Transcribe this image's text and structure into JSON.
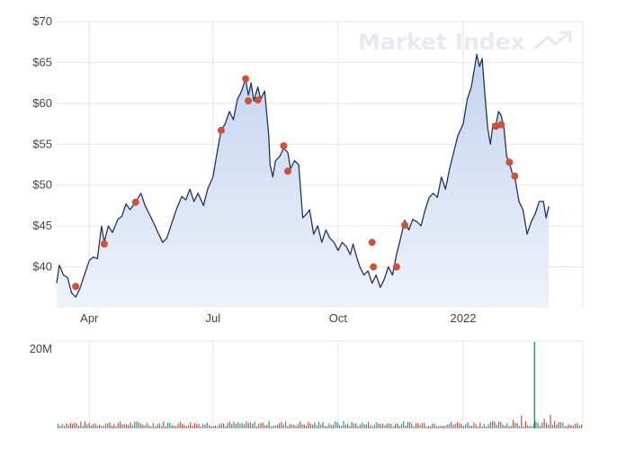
{
  "watermark": {
    "text": "Market Index"
  },
  "colors": {
    "line": "#22335f",
    "fill_top": "#c4d4ee",
    "fill_bottom": "#eef2fa",
    "marker": "#d0513a",
    "grid": "#e5e5e5",
    "vol_up": "#3a8f7f",
    "vol_down": "#c0503c"
  },
  "chart_data": [
    {
      "type": "area",
      "title": "",
      "xlabel": "",
      "ylabel": "",
      "ylim": [
        35,
        70
      ],
      "y_ticks": [
        "$40",
        "$45",
        "$50",
        "$55",
        "$60",
        "$65",
        "$70"
      ],
      "y_tick_values": [
        40,
        45,
        50,
        55,
        60,
        65,
        70
      ],
      "x_ticks": [
        "Apr",
        "Jul",
        "Oct",
        "2022"
      ],
      "x_tick_dates": [
        "2021-04-01",
        "2021-07-01",
        "2021-10-01",
        "2022-01-01"
      ],
      "xlim": [
        "2021-03-08",
        "2022-03-30"
      ],
      "grid": true,
      "series": [
        {
          "values": [
            [
              "2021-03-08",
              38.0
            ],
            [
              "2021-03-10",
              40.2
            ],
            [
              "2021-03-13",
              39.0
            ],
            [
              "2021-03-16",
              38.7
            ],
            [
              "2021-03-19",
              36.8
            ],
            [
              "2021-03-22",
              36.3
            ],
            [
              "2021-03-25",
              37.3
            ],
            [
              "2021-03-28",
              38.8
            ],
            [
              "2021-04-01",
              40.8
            ],
            [
              "2021-04-04",
              41.2
            ],
            [
              "2021-04-07",
              41.0
            ],
            [
              "2021-04-10",
              45.0
            ],
            [
              "2021-04-12",
              43.0
            ],
            [
              "2021-04-15",
              45.0
            ],
            [
              "2021-04-18",
              44.2
            ],
            [
              "2021-04-22",
              45.8
            ],
            [
              "2021-04-25",
              46.2
            ],
            [
              "2021-04-28",
              47.7
            ],
            [
              "2021-05-01",
              47.0
            ],
            [
              "2021-05-05",
              47.9
            ],
            [
              "2021-05-09",
              49.0
            ],
            [
              "2021-05-12",
              47.5
            ],
            [
              "2021-05-15",
              46.5
            ],
            [
              "2021-05-18",
              45.5
            ],
            [
              "2021-05-22",
              44.0
            ],
            [
              "2021-05-25",
              43.0
            ],
            [
              "2021-05-28",
              43.5
            ],
            [
              "2021-06-01",
              45.5
            ],
            [
              "2021-06-04",
              47.0
            ],
            [
              "2021-06-08",
              48.6
            ],
            [
              "2021-06-11",
              48.2
            ],
            [
              "2021-06-14",
              49.5
            ],
            [
              "2021-06-17",
              48.0
            ],
            [
              "2021-06-20",
              49.0
            ],
            [
              "2021-06-24",
              47.5
            ],
            [
              "2021-06-27",
              49.5
            ],
            [
              "2021-07-01",
              51.0
            ],
            [
              "2021-07-04",
              54.0
            ],
            [
              "2021-07-07",
              56.7
            ],
            [
              "2021-07-10",
              57.5
            ],
            [
              "2021-07-13",
              59.0
            ],
            [
              "2021-07-16",
              58.0
            ],
            [
              "2021-07-19",
              60.5
            ],
            [
              "2021-07-22",
              61.5
            ],
            [
              "2021-07-25",
              63.0
            ],
            [
              "2021-07-27",
              61.0
            ],
            [
              "2021-07-29",
              62.5
            ],
            [
              "2021-07-31",
              60.3
            ],
            [
              "2021-08-03",
              62.0
            ],
            [
              "2021-08-05",
              60.5
            ],
            [
              "2021-08-08",
              61.5
            ],
            [
              "2021-08-11",
              56.0
            ],
            [
              "2021-08-12",
              52.5
            ],
            [
              "2021-08-14",
              51.0
            ],
            [
              "2021-08-16",
              53.0
            ],
            [
              "2021-08-19",
              53.5
            ],
            [
              "2021-08-22",
              54.5
            ],
            [
              "2021-08-25",
              54.0
            ],
            [
              "2021-08-27",
              52.0
            ],
            [
              "2021-08-30",
              53.0
            ],
            [
              "2021-09-02",
              52.5
            ],
            [
              "2021-09-05",
              46.0
            ],
            [
              "2021-09-08",
              46.5
            ],
            [
              "2021-09-10",
              47.0
            ],
            [
              "2021-09-13",
              44.0
            ],
            [
              "2021-09-16",
              45.0
            ],
            [
              "2021-09-19",
              43.0
            ],
            [
              "2021-09-22",
              44.5
            ],
            [
              "2021-09-25",
              43.5
            ],
            [
              "2021-09-28",
              43.0
            ],
            [
              "2021-10-01",
              42.0
            ],
            [
              "2021-10-04",
              43.0
            ],
            [
              "2021-10-07",
              42.5
            ],
            [
              "2021-10-10",
              41.5
            ],
            [
              "2021-10-12",
              42.8
            ],
            [
              "2021-10-15",
              41.0
            ],
            [
              "2021-10-17",
              40.0
            ],
            [
              "2021-10-20",
              39.0
            ],
            [
              "2021-10-23",
              39.5
            ],
            [
              "2021-10-26",
              38.0
            ],
            [
              "2021-10-29",
              39.0
            ],
            [
              "2021-11-01",
              37.5
            ],
            [
              "2021-11-04",
              38.5
            ],
            [
              "2021-11-07",
              40.0
            ],
            [
              "2021-11-10",
              39.0
            ],
            [
              "2021-11-13",
              41.5
            ],
            [
              "2021-11-16",
              43.5
            ],
            [
              "2021-11-19",
              45.7
            ],
            [
              "2021-11-22",
              44.5
            ],
            [
              "2021-11-25",
              45.8
            ],
            [
              "2021-11-28",
              45.5
            ],
            [
              "2021-12-01",
              45.0
            ],
            [
              "2021-12-04",
              47.0
            ],
            [
              "2021-12-07",
              48.5
            ],
            [
              "2021-12-10",
              49.0
            ],
            [
              "2021-12-13",
              48.5
            ],
            [
              "2021-12-16",
              51.0
            ],
            [
              "2021-12-19",
              49.5
            ],
            [
              "2021-12-22",
              52.0
            ],
            [
              "2021-12-25",
              54.0
            ],
            [
              "2021-12-28",
              56.0
            ],
            [
              "2022-01-01",
              57.5
            ],
            [
              "2022-01-04",
              60.5
            ],
            [
              "2022-01-07",
              62.0
            ],
            [
              "2022-01-09",
              64.0
            ],
            [
              "2022-01-11",
              66.0
            ],
            [
              "2022-01-13",
              64.5
            ],
            [
              "2022-01-15",
              65.5
            ],
            [
              "2022-01-17",
              61.0
            ],
            [
              "2022-01-19",
              57.0
            ],
            [
              "2022-01-21",
              55.0
            ],
            [
              "2022-01-23",
              57.5
            ],
            [
              "2022-01-25",
              57.3
            ],
            [
              "2022-01-27",
              59.0
            ],
            [
              "2022-01-29",
              58.5
            ],
            [
              "2022-01-31",
              57.0
            ],
            [
              "2022-02-02",
              53.5
            ],
            [
              "2022-02-04",
              52.7
            ],
            [
              "2022-02-06",
              51.5
            ],
            [
              "2022-02-08",
              51.0
            ],
            [
              "2022-02-11",
              48.0
            ],
            [
              "2022-02-14",
              47.0
            ],
            [
              "2022-02-17",
              44.0
            ],
            [
              "2022-02-20",
              45.5
            ],
            [
              "2022-02-23",
              46.5
            ],
            [
              "2022-02-26",
              48.0
            ],
            [
              "2022-03-01",
              48.0
            ],
            [
              "2022-03-03",
              46.0
            ],
            [
              "2022-03-05",
              47.4
            ]
          ]
        }
      ],
      "markers": [
        [
          "2021-03-22",
          37.6
        ],
        [
          "2021-04-12",
          42.8
        ],
        [
          "2021-05-05",
          47.9
        ],
        [
          "2021-07-07",
          56.7
        ],
        [
          "2021-07-25",
          63.0
        ],
        [
          "2021-07-27",
          60.3
        ],
        [
          "2021-08-03",
          60.4
        ],
        [
          "2021-08-22",
          54.8
        ],
        [
          "2021-08-25",
          51.7
        ],
        [
          "2021-10-26",
          43.0
        ],
        [
          "2021-10-27",
          40.0
        ],
        [
          "2021-11-13",
          40.0
        ],
        [
          "2021-11-19",
          45.1
        ],
        [
          "2022-01-25",
          57.2
        ],
        [
          "2022-01-29",
          57.4
        ],
        [
          "2022-02-04",
          52.8
        ],
        [
          "2022-02-08",
          51.1
        ]
      ]
    },
    {
      "type": "bar",
      "title": "",
      "y_ticks": [
        "20M"
      ],
      "y_tick_values": [
        20000000
      ],
      "ylim": [
        0,
        22000000
      ],
      "spike": {
        "date": "2022-02-22",
        "value": 21800000
      }
    }
  ]
}
